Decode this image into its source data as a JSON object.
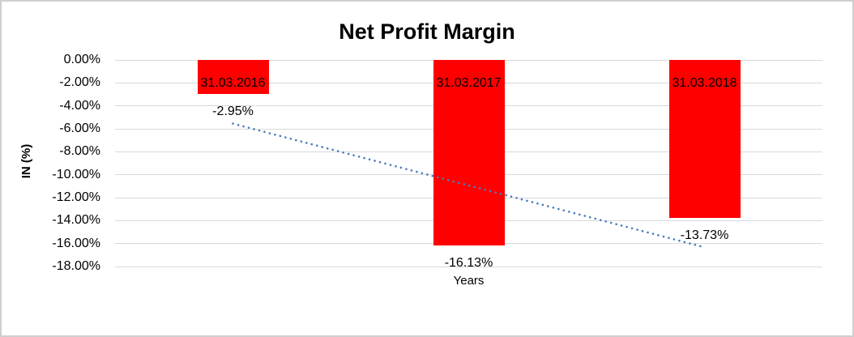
{
  "chart_data": {
    "type": "bar",
    "title": "Net Profit Margin",
    "xlabel": "Years",
    "ylabel": "IN (%)",
    "categories": [
      "31.03.2016",
      "31.03.2017",
      "31.03.2018"
    ],
    "values": [
      -2.95,
      -16.13,
      -13.73
    ],
    "value_labels": [
      "-2.95%",
      "-16.13%",
      "-13.73%"
    ],
    "ytick_labels": [
      "0.00%",
      "-2.00%",
      "-4.00%",
      "-6.00%",
      "-8.00%",
      "-10.00%",
      "-12.00%",
      "-14.00%",
      "-16.00%",
      "-18.00%"
    ],
    "ylim": [
      -18,
      0
    ],
    "ytick_step": 2,
    "grid": true,
    "legend": "none",
    "bar_color": "#ff0000",
    "gridline_color": "#d9d9d9",
    "trendline": {
      "type": "linear",
      "style": "dotted",
      "color": "#4a7ebb"
    }
  }
}
